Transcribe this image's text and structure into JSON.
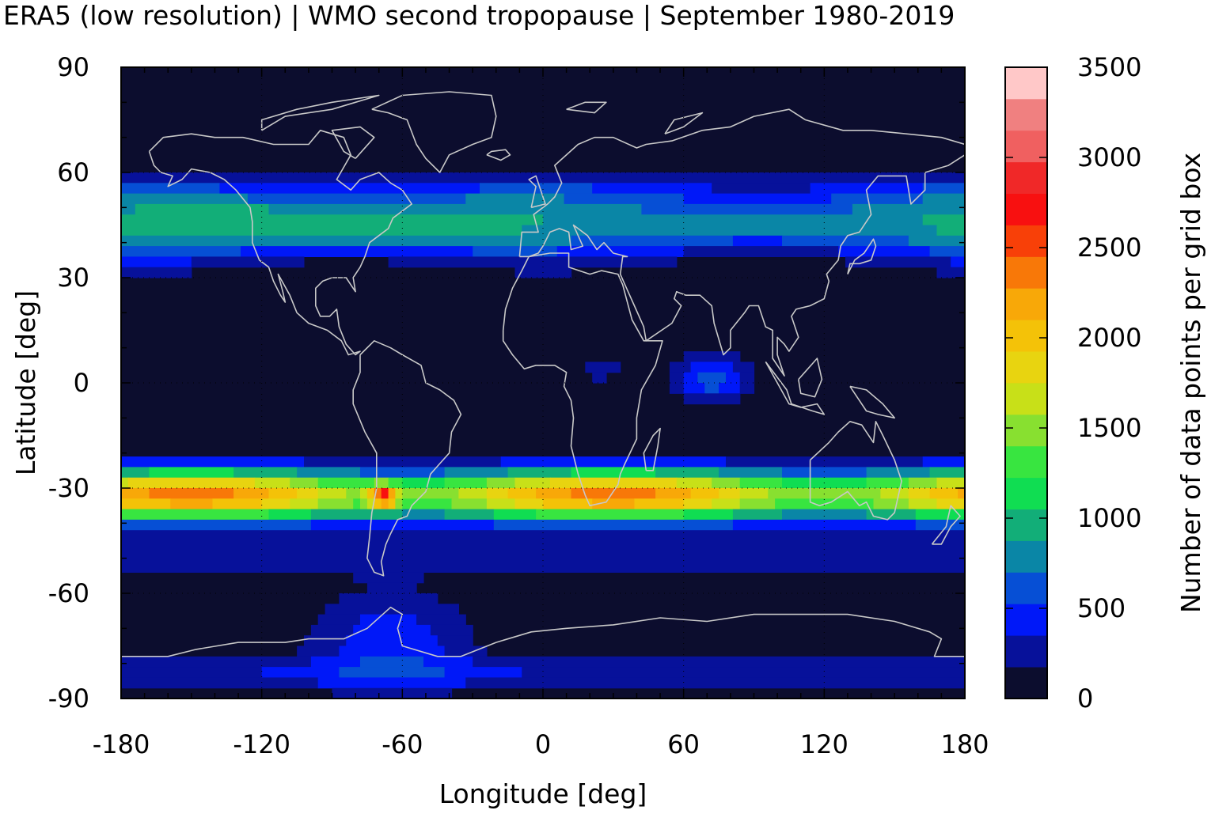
{
  "title": "ERA5 (low resolution) | WMO second tropopause | September 1980-2019",
  "xlabel": "Longitude [deg]",
  "ylabel": "Latitude [deg]",
  "colorbar_label": "Number of data points per grid box",
  "x_ticks": [
    "-180",
    "-120",
    "-60",
    "0",
    "60",
    "120",
    "180"
  ],
  "y_ticks": [
    "90",
    "60",
    "30",
    "0",
    "-30",
    "-60",
    "-90"
  ],
  "colorbar_ticks": [
    "3500",
    "3000",
    "2500",
    "2000",
    "1500",
    "1000",
    "500",
    "0"
  ],
  "colors": {
    "background_field": "#0c0d2e",
    "coastline": "#c8c8c8",
    "palette": [
      "#0c0d2e",
      "#07119a",
      "#0018f8",
      "#064fd5",
      "#0a86a6",
      "#12ae78",
      "#10dd52",
      "#38e540",
      "#88e030",
      "#c8e018",
      "#e8d410",
      "#f4c208",
      "#f8a808",
      "#f87808",
      "#f84008",
      "#f81010",
      "#f02828",
      "#f06060",
      "#f08080",
      "#ffc8c8"
    ]
  },
  "chart_data": {
    "type": "heatmap",
    "title": "ERA5 (low resolution) | WMO second tropopause | September 1980-2019",
    "xlabel": "Longitude [deg]",
    "ylabel": "Latitude [deg]",
    "xlim": [
      -180,
      180
    ],
    "ylim": [
      -90,
      90
    ],
    "colorbar": {
      "label": "Number of data points per grid box",
      "min": 0,
      "max": 3500,
      "levels": 20,
      "ticks": [
        0,
        500,
        1000,
        1500,
        2000,
        2500,
        3000,
        3500
      ]
    },
    "grid": true,
    "features": [
      {
        "region": "northern mid-latitude band",
        "lon": [
          -180,
          180
        ],
        "lat": [
          35,
          60
        ],
        "peak_lat": 45,
        "approx_value": 1000,
        "max_value": 1300
      },
      {
        "region": "southern subtropical band",
        "lon": [
          -180,
          180
        ],
        "lat": [
          -45,
          -22
        ],
        "peak_lat": -32,
        "approx_value": 2200,
        "max_value": 3300
      },
      {
        "region": "south america maximum",
        "lon": -68,
        "lat": -32,
        "approx_value": 3200
      },
      {
        "region": "indian ocean equatorial",
        "lon": [
          40,
          110
        ],
        "lat": [
          -10,
          10
        ],
        "approx_value": 600
      },
      {
        "region": "antarctic peninsula / weddell",
        "lon": [
          -100,
          -30
        ],
        "lat": [
          -85,
          -55
        ],
        "approx_value": 450
      }
    ]
  }
}
